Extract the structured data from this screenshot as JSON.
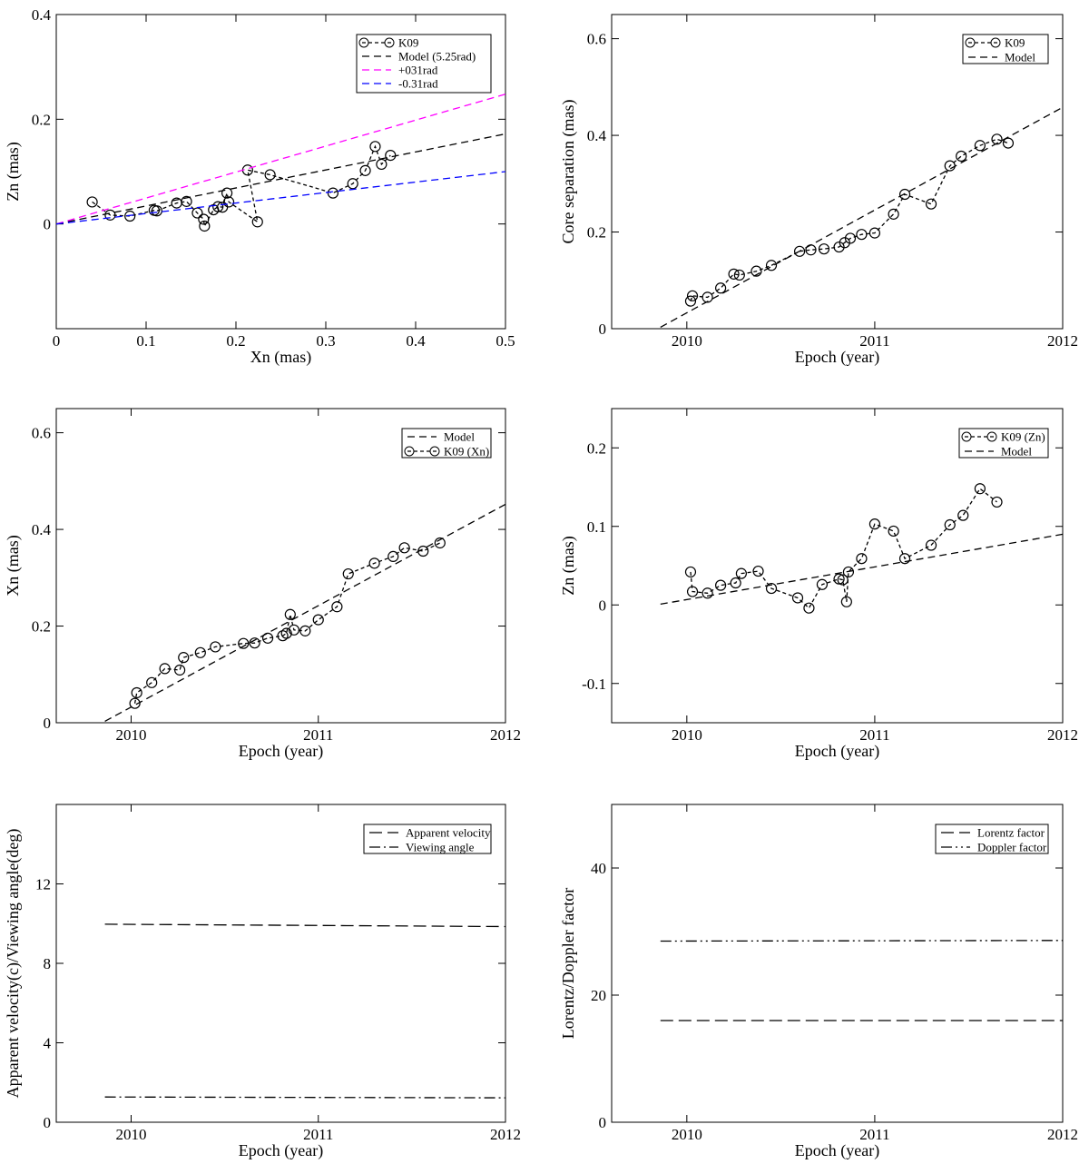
{
  "chart_data": [
    {
      "type": "scatter",
      "xlabel": "Xn (mas)",
      "ylabel": "Zn (mas)",
      "xlim": [
        0,
        0.5
      ],
      "ylim": [
        -0.2,
        0.4
      ],
      "xticks": [
        0,
        0.1,
        0.2,
        0.3,
        0.4,
        0.5
      ],
      "xticklabels": [
        "0",
        "0.1",
        "0.2",
        "0.3",
        "0.4",
        "0.5"
      ],
      "yticks": [
        0,
        0.2,
        0.4
      ],
      "yticklabels": [
        "0",
        "0.2",
        "0.4"
      ],
      "legend": "top-right",
      "series": [
        {
          "name": "K09",
          "style": "circles-dashed",
          "color": "#000000",
          "x": [
            0.04,
            0.06,
            0.082,
            0.109,
            0.112,
            0.134,
            0.145,
            0.157,
            0.164,
            0.165,
            0.175,
            0.18,
            0.185,
            0.19,
            0.192,
            0.224,
            0.213,
            0.238,
            0.308,
            0.33,
            0.344,
            0.355,
            0.362,
            0.372
          ],
          "y": [
            0.042,
            0.017,
            0.015,
            0.026,
            0.025,
            0.04,
            0.043,
            0.021,
            0.009,
            -0.004,
            0.027,
            0.033,
            0.032,
            0.059,
            0.042,
            0.004,
            0.103,
            0.094,
            0.059,
            0.077,
            0.102,
            0.148,
            0.114,
            0.131
          ]
        },
        {
          "name": "Model (5.25rad)",
          "style": "dashed",
          "color": "#000000",
          "x": [
            0,
            0.5
          ],
          "y": [
            0,
            0.172
          ]
        },
        {
          "name": "+031rad",
          "style": "dashed",
          "color": "#ff00ff",
          "x": [
            0,
            0.5
          ],
          "y": [
            0,
            0.248
          ]
        },
        {
          "name": "-0.31rad",
          "style": "dashed",
          "color": "#0000ff",
          "x": [
            0,
            0.5
          ],
          "y": [
            0,
            0.1
          ]
        }
      ]
    },
    {
      "type": "scatter",
      "xlabel": "Epoch (year)",
      "ylabel": "Core separation (mas)",
      "xlim": [
        2009.6,
        2012
      ],
      "ylim": [
        0,
        0.65
      ],
      "xticks": [
        2010,
        2011,
        2012
      ],
      "xticklabels": [
        "2010",
        "2011",
        "2012"
      ],
      "yticks": [
        0,
        0.2,
        0.4,
        0.6
      ],
      "yticklabels": [
        "0",
        "0.2",
        "0.4",
        "0.6"
      ],
      "legend": "top-right",
      "series": [
        {
          "name": "K09",
          "style": "circles-dashed",
          "color": "#000000",
          "x": [
            2010.02,
            2010.03,
            2010.11,
            2010.18,
            2010.25,
            2010.28,
            2010.37,
            2010.45,
            2010.6,
            2010.66,
            2010.73,
            2010.81,
            2010.84,
            2010.87,
            2010.93,
            2011.0,
            2011.1,
            2011.16,
            2011.3,
            2011.4,
            2011.46,
            2011.56,
            2011.65,
            2011.71
          ],
          "y": [
            0.057,
            0.068,
            0.065,
            0.084,
            0.113,
            0.111,
            0.119,
            0.131,
            0.16,
            0.163,
            0.165,
            0.169,
            0.178,
            0.187,
            0.195,
            0.198,
            0.237,
            0.278,
            0.258,
            0.337,
            0.357,
            0.379,
            0.392,
            0.384
          ]
        },
        {
          "name": "Model",
          "style": "dashed",
          "color": "#000000",
          "x": [
            2009.86,
            2012
          ],
          "y": [
            0.003,
            0.458
          ]
        }
      ]
    },
    {
      "type": "scatter",
      "xlabel": "Epoch (year)",
      "ylabel": "Xn (mas)",
      "xlim": [
        2009.6,
        2012
      ],
      "ylim": [
        0,
        0.65
      ],
      "xticks": [
        2010,
        2011,
        2012
      ],
      "xticklabels": [
        "2010",
        "2011",
        "2012"
      ],
      "yticks": [
        0,
        0.2,
        0.4,
        0.6
      ],
      "yticklabels": [
        "0",
        "0.2",
        "0.4",
        "0.6"
      ],
      "legend": "top-right",
      "series": [
        {
          "name": "Model",
          "style": "dashed",
          "color": "#000000",
          "x": [
            2009.86,
            2012
          ],
          "y": [
            0.003,
            0.452
          ]
        },
        {
          "name": "K09 (Xn)",
          "style": "circles-dashed",
          "color": "#000000",
          "x": [
            2010.02,
            2010.03,
            2010.11,
            2010.18,
            2010.26,
            2010.28,
            2010.37,
            2010.45,
            2010.6,
            2010.66,
            2010.73,
            2010.81,
            2010.83,
            2010.85,
            2010.87,
            2010.93,
            2011.0,
            2011.1,
            2011.16,
            2011.3,
            2011.4,
            2011.46,
            2011.56,
            2011.65
          ],
          "y": [
            0.04,
            0.062,
            0.083,
            0.112,
            0.109,
            0.135,
            0.145,
            0.157,
            0.164,
            0.165,
            0.175,
            0.18,
            0.185,
            0.224,
            0.192,
            0.19,
            0.213,
            0.24,
            0.308,
            0.33,
            0.344,
            0.362,
            0.355,
            0.372
          ]
        }
      ]
    },
    {
      "type": "scatter",
      "xlabel": "Epoch (year)",
      "ylabel": "Zn (mas)",
      "xlim": [
        2009.6,
        2012
      ],
      "ylim": [
        -0.15,
        0.25
      ],
      "xticks": [
        2010,
        2011,
        2012
      ],
      "xticklabels": [
        "2010",
        "2011",
        "2012"
      ],
      "yticks": [
        -0.1,
        0,
        0.1,
        0.2
      ],
      "yticklabels": [
        "-0.1",
        "0",
        "0.1",
        "0.2"
      ],
      "legend": "top-right",
      "series": [
        {
          "name": "K09 (Zn)",
          "style": "circles-dashed",
          "color": "#000000",
          "x": [
            2010.02,
            2010.03,
            2010.11,
            2010.18,
            2010.26,
            2010.29,
            2010.38,
            2010.45,
            2010.59,
            2010.65,
            2010.72,
            2010.81,
            2010.83,
            2010.85,
            2010.86,
            2010.93,
            2011.0,
            2011.1,
            2011.16,
            2011.3,
            2011.4,
            2011.47,
            2011.56,
            2011.65
          ],
          "y": [
            0.042,
            0.017,
            0.015,
            0.025,
            0.028,
            0.04,
            0.043,
            0.021,
            0.009,
            -0.004,
            0.026,
            0.033,
            0.032,
            0.004,
            0.042,
            0.059,
            0.103,
            0.094,
            0.059,
            0.076,
            0.102,
            0.114,
            0.148,
            0.131
          ]
        },
        {
          "name": "Model",
          "style": "dashed",
          "color": "#000000",
          "x": [
            2009.86,
            2012
          ],
          "y": [
            0.001,
            0.09
          ]
        }
      ]
    },
    {
      "type": "line",
      "xlabel": "Epoch (year)",
      "ylabel": "Apparent velocity(c)/Viewing angle(deg)",
      "xlim": [
        2009.6,
        2012
      ],
      "ylim": [
        0,
        16
      ],
      "xticks": [
        2010,
        2011,
        2012
      ],
      "xticklabels": [
        "2010",
        "2011",
        "2012"
      ],
      "yticks": [
        0,
        4,
        8,
        12
      ],
      "yticklabels": [
        "0",
        "4",
        "8",
        "12"
      ],
      "legend": "top-right",
      "series": [
        {
          "name": "Apparent velocity",
          "style": "longdash",
          "color": "#000000",
          "x": [
            2009.86,
            2012
          ],
          "y": [
            9.97,
            9.85
          ]
        },
        {
          "name": "Viewing angle",
          "style": "dashdot",
          "color": "#000000",
          "x": [
            2009.86,
            2012
          ],
          "y": [
            1.27,
            1.23
          ]
        }
      ]
    },
    {
      "type": "line",
      "xlabel": "Epoch (year)",
      "ylabel": "Lorentz/Doppler factor",
      "xlim": [
        2009.6,
        2012
      ],
      "ylim": [
        0,
        50
      ],
      "xticks": [
        2010,
        2011,
        2012
      ],
      "xticklabels": [
        "2010",
        "2011",
        "2012"
      ],
      "yticks": [
        0,
        20,
        40
      ],
      "yticklabels": [
        "0",
        "20",
        "40"
      ],
      "legend": "top-right",
      "series": [
        {
          "name": "Lorentz factor",
          "style": "longdash",
          "color": "#000000",
          "x": [
            2009.86,
            2012
          ],
          "y": [
            16.0,
            16.0
          ]
        },
        {
          "name": "Doppler factor",
          "style": "dashdotdot",
          "color": "#000000",
          "x": [
            2009.86,
            2012
          ],
          "y": [
            28.5,
            28.6
          ]
        }
      ]
    }
  ]
}
